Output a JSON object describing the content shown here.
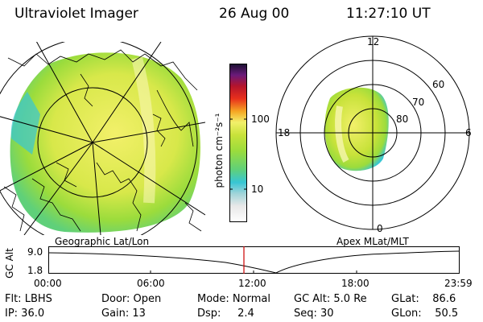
{
  "header": {
    "instrument": "Ultraviolet Imager",
    "date": "26 Aug 00",
    "time": "11:27:10 UT"
  },
  "colorbar": {
    "unit_label": "photon cm⁻²s⁻¹",
    "tick_100": "100",
    "tick_10": "10",
    "colors": [
      "#e8e8e8",
      "#9fd4d9",
      "#37c6d4",
      "#5fd07a",
      "#9bdc3c",
      "#c8e23a",
      "#f2f06a",
      "#f5a623",
      "#e8301c",
      "#b4142c",
      "#6a1a7a",
      "#1a1030"
    ]
  },
  "geo_map": {
    "caption": "Geographic Lat/Lon"
  },
  "polar_map": {
    "caption": "Apex MLat/MLT",
    "mlt_labels": {
      "top": "12",
      "right": "6",
      "bottom": "0",
      "left": "18"
    },
    "mlat_labels": [
      "60",
      "70",
      "80"
    ]
  },
  "altitude_plot": {
    "ylabel": "GC Alt",
    "ymax": "9.0",
    "ymin": "1.8",
    "time_ticks": [
      "00:00",
      "06:00",
      "12:00",
      "18:00",
      "23:59"
    ],
    "marker_color": "#cc0000"
  },
  "info": {
    "flt": "Flt: LBHS",
    "ip": "IP: 36.0",
    "door": "Door: Open",
    "gain": "Gain: 13",
    "mode": "Mode: Normal",
    "dsp": "Dsp:     2.4",
    "gc_alt": "GC Alt: 5.0 Re",
    "seq": "Seq: 30",
    "glat": "GLat:    86.6",
    "glon": "GLon:    50.5"
  }
}
